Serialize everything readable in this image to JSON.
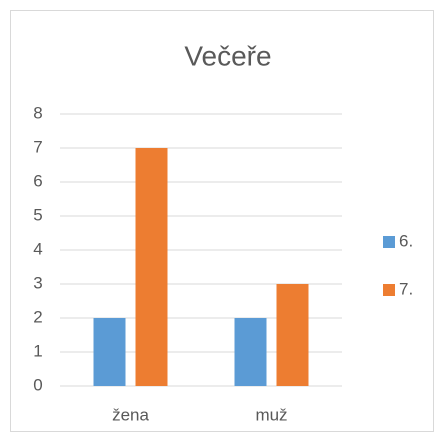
{
  "chart_data": {
    "type": "bar",
    "title": "Večeře",
    "categories": [
      "žena",
      "muž"
    ],
    "series": [
      {
        "name": "6.",
        "color": "#5b9bd5",
        "values": [
          2,
          2
        ]
      },
      {
        "name": "7.",
        "color": "#ed7d31",
        "values": [
          7,
          3
        ]
      }
    ],
    "ylim": [
      0,
      8
    ],
    "yticks": [
      0,
      1,
      2,
      3,
      4,
      5,
      6,
      7,
      8
    ],
    "grid": true,
    "legend": "right"
  }
}
